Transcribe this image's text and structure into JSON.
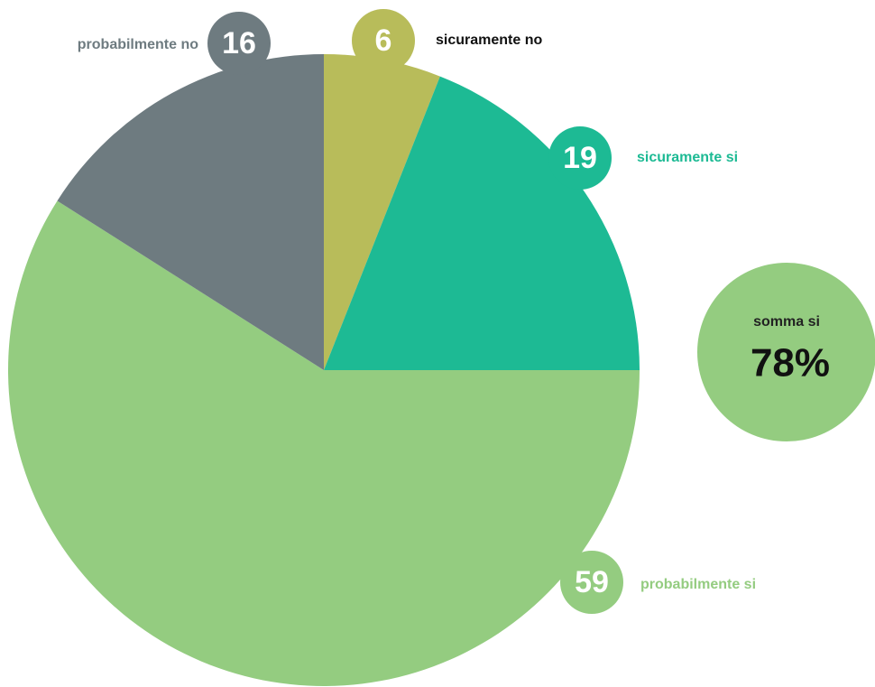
{
  "chart_data": {
    "type": "pie",
    "categories": [
      "sicuramente no",
      "sicuramente si",
      "probabilmente si",
      "probabilmente no"
    ],
    "values": [
      6,
      19,
      59,
      16
    ],
    "colors": [
      "#b8bc5a",
      "#1dba94",
      "#94cc80",
      "#6e7b80"
    ],
    "annotation": {
      "label": "somma si",
      "text": "78%"
    }
  }
}
